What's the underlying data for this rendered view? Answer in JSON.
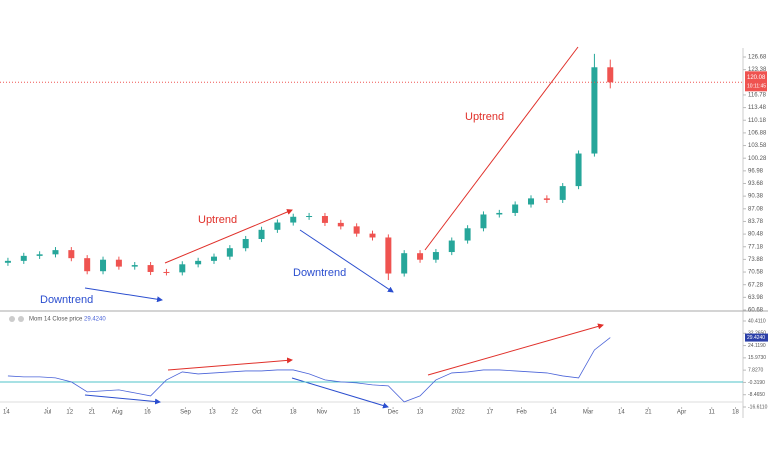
{
  "chart_data": [
    {
      "type": "candlestick",
      "open": [
        73.0,
        73.5,
        74.8,
        75.2,
        76.3,
        74.2,
        70.8,
        73.8,
        72.0,
        72.4,
        70.6,
        70.5,
        72.6,
        73.5,
        74.6,
        76.8,
        79.2,
        81.6,
        83.5,
        85.0,
        85.2,
        83.4,
        82.5,
        80.6,
        79.6,
        70.2,
        75.5,
        73.8,
        75.8,
        78.8,
        82.0,
        85.6,
        86.0,
        88.2,
        89.8,
        89.4,
        93.0,
        101.5,
        124.0
      ],
      "high": [
        74.3,
        75.6,
        76.0,
        77.1,
        77.1,
        75.0,
        74.6,
        74.6,
        73.2,
        73.2,
        71.4,
        73.4,
        74.3,
        75.4,
        77.6,
        80.0,
        82.4,
        84.3,
        85.8,
        86.0,
        86.0,
        84.2,
        83.3,
        81.4,
        80.4,
        76.3,
        76.3,
        76.6,
        79.6,
        82.8,
        86.4,
        86.8,
        89.0,
        90.6,
        90.6,
        93.8,
        102.3,
        127.5,
        126.0
      ],
      "low": [
        72.2,
        72.7,
        74.0,
        74.4,
        73.4,
        70.0,
        70.0,
        71.2,
        71.2,
        69.8,
        69.7,
        69.7,
        71.8,
        72.7,
        73.8,
        76.0,
        78.4,
        80.8,
        82.7,
        84.2,
        82.6,
        81.7,
        79.8,
        78.8,
        68.5,
        69.4,
        73.0,
        73.0,
        75.0,
        78.0,
        81.2,
        84.8,
        85.2,
        87.4,
        88.6,
        88.6,
        92.2,
        100.7,
        118.5
      ],
      "close": [
        73.5,
        74.8,
        75.2,
        76.3,
        74.2,
        70.8,
        73.8,
        72.0,
        72.4,
        70.6,
        70.5,
        72.6,
        73.5,
        74.6,
        76.8,
        79.2,
        81.6,
        83.5,
        85.0,
        85.2,
        83.4,
        82.5,
        80.6,
        79.6,
        70.2,
        75.5,
        73.8,
        75.8,
        78.8,
        82.0,
        85.6,
        86.0,
        88.2,
        89.8,
        89.4,
        93.0,
        101.5,
        124.0,
        120.08
      ],
      "up_color": "#26a69a",
      "down_color": "#ef5350",
      "last_price": 120.08,
      "last_price_label": "120.08",
      "countdown": "10:11:45",
      "xlim": [
        -0.5,
        46.5
      ],
      "ylim": [
        60.68,
        126.68
      ],
      "yticks": [
        {
          "value": 60.68,
          "label": "60.68"
        },
        {
          "value": 63.98,
          "label": "63.98"
        },
        {
          "value": 67.28,
          "label": "67.28"
        },
        {
          "value": 70.58,
          "label": "70.58"
        },
        {
          "value": 73.88,
          "label": "73.88"
        },
        {
          "value": 77.18,
          "label": "77.18"
        },
        {
          "value": 80.48,
          "label": "80.48"
        },
        {
          "value": 83.78,
          "label": "83.78"
        },
        {
          "value": 87.08,
          "label": "87.08"
        },
        {
          "value": 90.38,
          "label": "90.38"
        },
        {
          "value": 93.68,
          "label": "93.68"
        },
        {
          "value": 96.98,
          "label": "96.98"
        },
        {
          "value": 100.28,
          "label": "100.28"
        },
        {
          "value": 103.58,
          "label": "103.58"
        },
        {
          "value": 106.88,
          "label": "106.88"
        },
        {
          "value": 110.18,
          "label": "110.18"
        },
        {
          "value": 113.48,
          "label": "113.48"
        },
        {
          "value": 116.78,
          "label": "116.78"
        },
        {
          "value": 123.38,
          "label": "123.38"
        },
        {
          "value": 126.68,
          "label": "126.68"
        }
      ],
      "annotations": [
        {
          "text": "Downtrend",
          "color": "#2b4ecf"
        },
        {
          "text": "Uptrend",
          "color": "#e0302a"
        },
        {
          "text": "Downtrend",
          "color": "#2b4ecf"
        },
        {
          "text": "Uptrend",
          "color": "#e0302a"
        }
      ]
    },
    {
      "type": "line",
      "title": "Mom",
      "subtitle": "14 Close price",
      "series": [
        {
          "name": "Mom",
          "color": "#4a63d8",
          "values": [
            3.99,
            3.34,
            3.34,
            2.68,
            0.03,
            -6.59,
            -5.93,
            -5.27,
            -7.25,
            -9.24,
            1.35,
            6.65,
            5.32,
            5.99,
            6.65,
            7.31,
            7.31,
            7.97,
            7.97,
            5.32,
            1.35,
            0.03,
            -0.63,
            -1.96,
            -2.62,
            -13.21,
            -9.24,
            1.35,
            5.99,
            6.65,
            7.97,
            7.97,
            7.31,
            6.65,
            5.99,
            3.99,
            2.68,
            21.21,
            29.424
          ]
        }
      ],
      "last_value_label": "29.4240",
      "xlim": [
        -0.5,
        46.5
      ],
      "ylim": [
        -16.611,
        40.411
      ],
      "yticks": [
        {
          "value": -16.611,
          "label": "-16.6110"
        },
        {
          "value": -8.465,
          "label": "-8.4650"
        },
        {
          "value": -0.319,
          "label": "-0.3190"
        },
        {
          "value": 7.827,
          "label": "7.8270"
        },
        {
          "value": 15.973,
          "label": "15.9730"
        },
        {
          "value": 24.119,
          "label": "24.1190"
        },
        {
          "value": 32.265,
          "label": "32.2650"
        },
        {
          "value": 40.411,
          "label": "40.4110"
        }
      ],
      "xticks": [
        {
          "value": -0.1,
          "label": "14"
        },
        {
          "value": 2.5,
          "label": "Jul"
        },
        {
          "value": 3.9,
          "label": "12"
        },
        {
          "value": 5.3,
          "label": "21"
        },
        {
          "value": 6.9,
          "label": "Aug"
        },
        {
          "value": 8.8,
          "label": "16"
        },
        {
          "value": 11.2,
          "label": "Sep"
        },
        {
          "value": 12.9,
          "label": "13"
        },
        {
          "value": 14.3,
          "label": "22"
        },
        {
          "value": 15.7,
          "label": "Oct"
        },
        {
          "value": 18.0,
          "label": "18"
        },
        {
          "value": 19.8,
          "label": "Nov"
        },
        {
          "value": 22.0,
          "label": "15"
        },
        {
          "value": 24.3,
          "label": "Dec"
        },
        {
          "value": 26.0,
          "label": "13"
        },
        {
          "value": 28.4,
          "label": "2022"
        },
        {
          "value": 30.4,
          "label": "17"
        },
        {
          "value": 32.4,
          "label": "Feb"
        },
        {
          "value": 34.4,
          "label": "14"
        },
        {
          "value": 36.6,
          "label": "Mar"
        },
        {
          "value": 38.7,
          "label": "14"
        },
        {
          "value": 40.4,
          "label": "21"
        },
        {
          "value": 42.5,
          "label": "Apr"
        },
        {
          "value": 44.4,
          "label": "11"
        },
        {
          "value": 45.9,
          "label": "18"
        }
      ]
    }
  ]
}
